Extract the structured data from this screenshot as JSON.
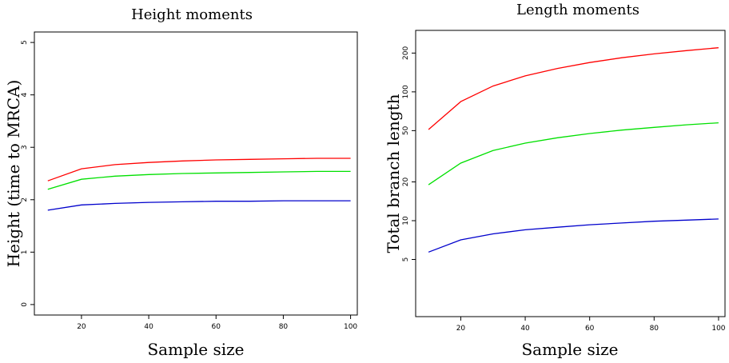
{
  "chart_data": [
    {
      "type": "line",
      "title": "Height moments",
      "xlabel": "Sample size",
      "ylabel": "Height (time to MRCA)",
      "y_scale": "linear",
      "xlim": [
        6,
        102
      ],
      "ylim": [
        -0.2,
        5.2
      ],
      "x_ticks": [
        20,
        40,
        60,
        80,
        100
      ],
      "y_ticks": [
        0,
        1,
        2,
        3,
        4,
        5
      ],
      "grid": false,
      "x": [
        10,
        20,
        30,
        40,
        50,
        60,
        70,
        80,
        90,
        100
      ],
      "series": [
        {
          "color": "#ff0000",
          "values": [
            2.36,
            2.59,
            2.67,
            2.71,
            2.74,
            2.76,
            2.77,
            2.78,
            2.79,
            2.79
          ]
        },
        {
          "color": "#00e000",
          "values": [
            2.2,
            2.39,
            2.45,
            2.48,
            2.5,
            2.51,
            2.52,
            2.53,
            2.54,
            2.54
          ]
        },
        {
          "color": "#0000cc",
          "values": [
            1.8,
            1.9,
            1.93,
            1.95,
            1.96,
            1.97,
            1.97,
            1.98,
            1.98,
            1.98
          ]
        }
      ]
    },
    {
      "type": "line",
      "title": "Length moments",
      "xlabel": "Sample size",
      "ylabel": "Total branch length",
      "y_scale": "log",
      "xlim": [
        6,
        102
      ],
      "ylim": [
        1.8,
        300
      ],
      "x_ticks": [
        20,
        40,
        60,
        80,
        100
      ],
      "y_ticks": [
        5,
        10,
        20,
        50,
        100,
        200
      ],
      "grid": false,
      "x": [
        10,
        20,
        30,
        40,
        50,
        60,
        70,
        80,
        90,
        100
      ],
      "series": [
        {
          "color": "#ff0000",
          "values": [
            51,
            84,
            111,
            133,
            152,
            169,
            184,
            197,
            209,
            220
          ]
        },
        {
          "color": "#00e000",
          "values": [
            19,
            28,
            35,
            40,
            44,
            47.5,
            50.5,
            53,
            55.5,
            57.5
          ]
        },
        {
          "color": "#0000cc",
          "values": [
            5.7,
            7.1,
            7.9,
            8.5,
            8.9,
            9.3,
            9.6,
            9.9,
            10.1,
            10.3
          ]
        }
      ]
    }
  ]
}
